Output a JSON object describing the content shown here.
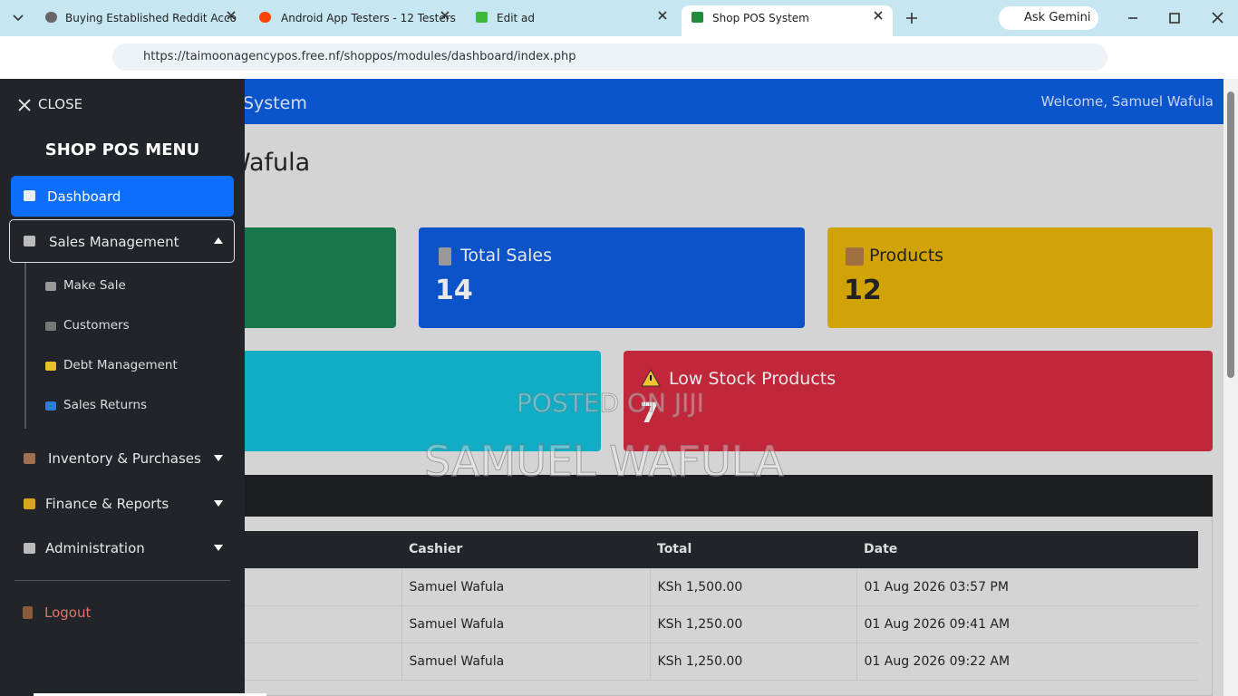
{
  "browser": {
    "tabs": [
      "Buying Established Reddit Acco",
      "Android App Testers - 12 Testers",
      "Edit ad",
      "Shop POS System"
    ],
    "gemini": "Ask Gemini",
    "url": "https://taimoonagencypos.free.nf/shoppos/modules/dashboard/index.php"
  },
  "header": {
    "title": "System",
    "welcome": "Welcome, Samuel Wafula"
  },
  "heading": "Wafula",
  "cards": [
    {
      "label": "Total Sales",
      "value": 14
    },
    {
      "label": "Products",
      "value": 12
    },
    {
      "label": "Low Stock Products",
      "value": 7
    }
  ],
  "watermark": [
    "POSTED ON JIJI",
    "SAMUEL WAFULA"
  ],
  "table": {
    "headers": [
      "Cashier",
      "Total",
      "Date"
    ],
    "rows": [
      [
        "Samuel Wafula",
        "KSh 1,500.00",
        "01 Aug 2026 03:57 PM"
      ],
      [
        "Samuel Wafula",
        "KSh 1,250.00",
        "01 Aug 2026 09:41 AM"
      ],
      [
        "Samuel Wafula",
        "KSh 1,250.00",
        "01 Aug 2026 09:22 AM"
      ]
    ]
  },
  "sidebar": {
    "close": "CLOSE",
    "title": "SHOP POS MENU",
    "dashboard": "Dashboard",
    "sales": "Sales Management",
    "sub": [
      "Make Sale",
      "Customers",
      "Debt Management",
      "Sales Returns"
    ],
    "groups": [
      "Inventory & Purchases",
      "Finance & Reports",
      "Administration"
    ],
    "logout": "Logout"
  }
}
